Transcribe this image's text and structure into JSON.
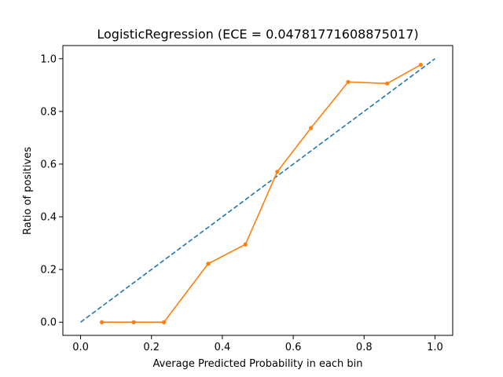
{
  "chart_data": {
    "type": "line",
    "title": "LogisticRegression (ECE = 0.04781771608875017)",
    "xlabel": "Average Predicted Probability in each bin",
    "ylabel": "Ratio of positives",
    "xlim": [
      -0.05,
      1.05
    ],
    "ylim": [
      -0.05,
      1.05
    ],
    "xticks": [
      0.0,
      0.2,
      0.4,
      0.6,
      0.8,
      1.0
    ],
    "yticks": [
      0.0,
      0.2,
      0.4,
      0.6,
      0.8,
      1.0
    ],
    "xtick_labels": [
      "0.0",
      "0.2",
      "0.4",
      "0.6",
      "0.8",
      "1.0"
    ],
    "ytick_labels": [
      "0.0",
      "0.2",
      "0.4",
      "0.6",
      "0.8",
      "1.0"
    ],
    "grid": false,
    "series": [
      {
        "style": "dashed",
        "color": "#1f77b4",
        "x": [
          0.0,
          1.0
        ],
        "y": [
          0.0,
          1.0
        ]
      },
      {
        "style": "solid-with-markers",
        "color": "#ff7f0e",
        "x": [
          0.06,
          0.15,
          0.235,
          0.36,
          0.465,
          0.555,
          0.65,
          0.755,
          0.865,
          0.96
        ],
        "y": [
          0.0,
          0.0,
          0.0,
          0.222,
          0.295,
          0.571,
          0.737,
          0.912,
          0.906,
          0.977
        ]
      }
    ]
  }
}
